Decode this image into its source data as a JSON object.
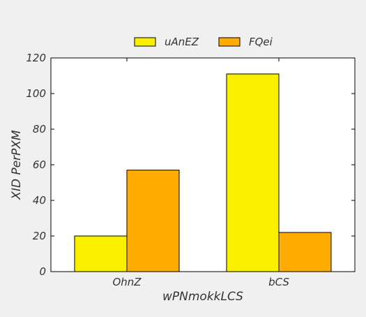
{
  "chart_data": {
    "type": "bar",
    "title": "",
    "xlabel": "wPNmokkLCS",
    "ylabel": "XID PerPXM",
    "categories": [
      "OhnZ",
      "bCS"
    ],
    "series": [
      {
        "name": "uAnEZ",
        "values": [
          20,
          111
        ]
      },
      {
        "name": "FQei",
        "values": [
          57,
          22
        ]
      }
    ],
    "ylim": [
      0,
      120
    ],
    "yticks": [
      0,
      20,
      40,
      60,
      80,
      100,
      120
    ],
    "grid": false,
    "legend_position": "top-center",
    "colors": {
      "series": [
        "#f9f000",
        "#ffab00"
      ],
      "background": "#f0f0f0",
      "plot_area": "#ffffff",
      "bar_edge": "#000000"
    }
  }
}
